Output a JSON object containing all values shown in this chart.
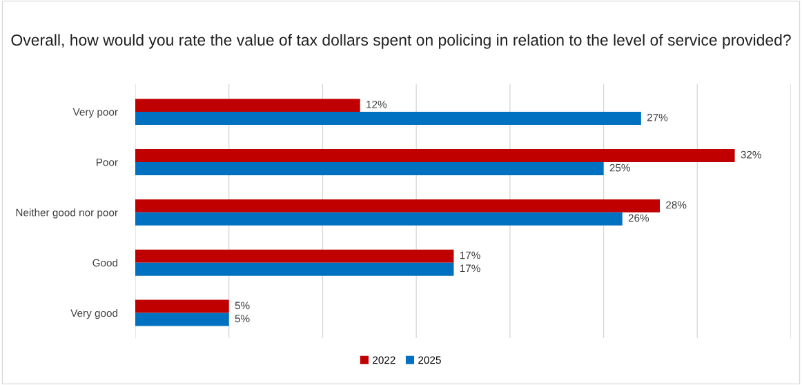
{
  "chart_data": {
    "type": "bar",
    "orientation": "horizontal",
    "title": "Overall, how would you rate the value of tax dollars spent on policing in relation to the level of service provided?",
    "categories": [
      "Very poor",
      "Poor",
      "Neither good nor poor",
      "Good",
      "Very good"
    ],
    "series": [
      {
        "name": "2022",
        "color": "#c00000",
        "values": [
          12,
          32,
          28,
          17,
          5
        ],
        "value_labels": [
          "12%",
          "32%",
          "28%",
          "17%",
          "5%"
        ]
      },
      {
        "name": "2025",
        "color": "#0070c0",
        "values": [
          27,
          25,
          26,
          17,
          5
        ],
        "value_labels": [
          "27%",
          "25%",
          "26%",
          "17%",
          "5%"
        ]
      }
    ],
    "xlim": [
      0,
      35
    ],
    "xticks": [
      {
        "value": 0,
        "label": null
      },
      {
        "value": 5,
        "label": null
      },
      {
        "value": 10,
        "label": null
      },
      {
        "value": 15,
        "label": null
      },
      {
        "value": 20,
        "label": null
      },
      {
        "value": 25,
        "label": null
      },
      {
        "value": 30,
        "label": null
      },
      {
        "value": 35,
        "label": null
      }
    ],
    "tick_labels": "y",
    "grid": "x",
    "legend": "bottom"
  }
}
